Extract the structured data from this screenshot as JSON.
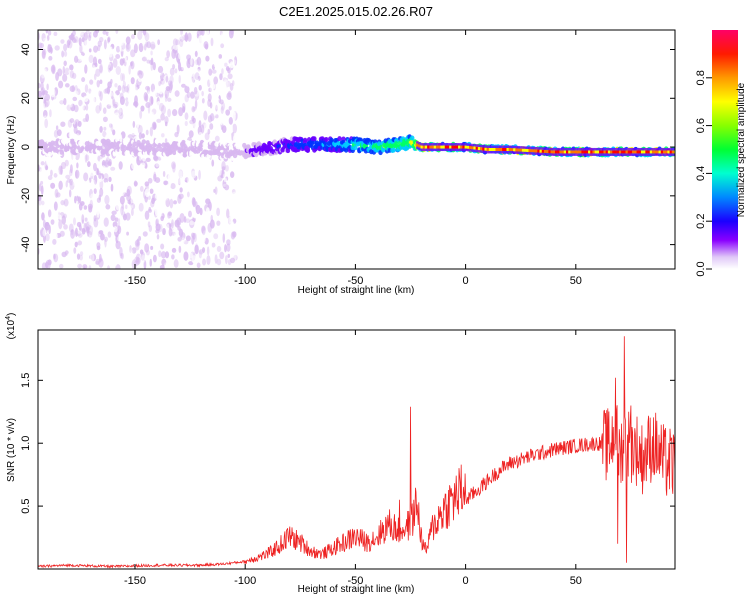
{
  "title": "C2E1.2025.015.02.26.R07",
  "chart_data": [
    {
      "type": "heatmap",
      "xlabel": "Height of straight line (km)",
      "ylabel": "Frequency (Hz)",
      "xlim": [
        -194,
        95
      ],
      "ylim": [
        -50,
        48
      ],
      "x_ticks": [
        -150,
        -100,
        -50,
        0,
        50
      ],
      "y_ticks": [
        -40,
        -20,
        0,
        20,
        40
      ],
      "colorbar": {
        "label": "Normalized spectral amplitude",
        "range": [
          0,
          1
        ],
        "ticks": [
          "0.0",
          "0.2",
          "0.4",
          "0.6",
          "0.8"
        ],
        "tick_values": [
          0,
          0.2,
          0.4,
          0.6,
          0.8
        ]
      },
      "ridge": {
        "x": [
          -194,
          -150,
          -120,
          -100,
          -80,
          -60,
          -50,
          -40,
          -30,
          -25,
          -20,
          -10,
          0,
          10,
          20,
          40,
          60,
          80,
          95
        ],
        "y": [
          0,
          0,
          -1,
          -2,
          1,
          1,
          1,
          0,
          1,
          2,
          0,
          0,
          0,
          -1,
          -1,
          -2,
          -2,
          -2,
          -2
        ]
      },
      "colors": {
        "scale": [
          "#ffffff",
          "#d8b8f0",
          "#6a00ff",
          "#0033ff",
          "#00ccff",
          "#00ff66",
          "#ffff00",
          "#ff7700",
          "#ff0000",
          "#ff0066"
        ]
      }
    },
    {
      "type": "line",
      "xlabel": "Height of straight line (km)",
      "ylabel": "SNR (10 * v/v)",
      "y_multiplier": "(x10",
      "y_multiplier_exp": "4",
      "y_multiplier_close": ")",
      "xlim": [
        -194,
        95
      ],
      "ylim": [
        0,
        1.9
      ],
      "x_ticks": [
        -150,
        -100,
        -50,
        0,
        50
      ],
      "y_ticks": [
        0.5,
        1.0,
        1.5
      ],
      "y_tick_labels": [
        "0.5",
        "1.0",
        "1.5"
      ],
      "series": [
        {
          "color": "#ee2222",
          "x": [
            -194,
            -180,
            -160,
            -140,
            -120,
            -110,
            -100,
            -90,
            -85,
            -80,
            -75,
            -70,
            -65,
            -60,
            -55,
            -50,
            -45,
            -40,
            -35,
            -30,
            -25,
            -22,
            -20,
            -18,
            -15,
            -10,
            -5,
            0,
            5,
            10,
            15,
            20,
            30,
            40,
            50,
            60,
            65,
            68,
            70,
            72,
            75,
            78,
            80,
            85,
            90,
            95
          ],
          "y": [
            0.01,
            0.02,
            0.01,
            0.02,
            0.02,
            0.03,
            0.05,
            0.1,
            0.15,
            0.22,
            0.18,
            0.12,
            0.1,
            0.14,
            0.18,
            0.22,
            0.18,
            0.22,
            0.3,
            0.26,
            0.3,
            0.45,
            0.2,
            0.12,
            0.28,
            0.4,
            0.48,
            0.55,
            0.62,
            0.7,
            0.78,
            0.84,
            0.9,
            0.95,
            0.98,
            1.0,
            0.98,
            1.1,
            0.9,
            1.05,
            0.98,
            0.95,
            0.88,
            1.0,
            0.85,
            0.82
          ],
          "spikes": [
            {
              "x": -25,
              "y": 1.29
            },
            {
              "x": -30,
              "y": 0.55
            },
            {
              "x": -80,
              "y": 0.3
            },
            {
              "x": 68,
              "y": 1.52
            },
            {
              "x": 72,
              "y": 1.85
            },
            {
              "x": 75,
              "y": 1.3
            },
            {
              "x": 73,
              "y": 0.05
            },
            {
              "x": 69,
              "y": 0.2
            }
          ]
        }
      ]
    }
  ]
}
